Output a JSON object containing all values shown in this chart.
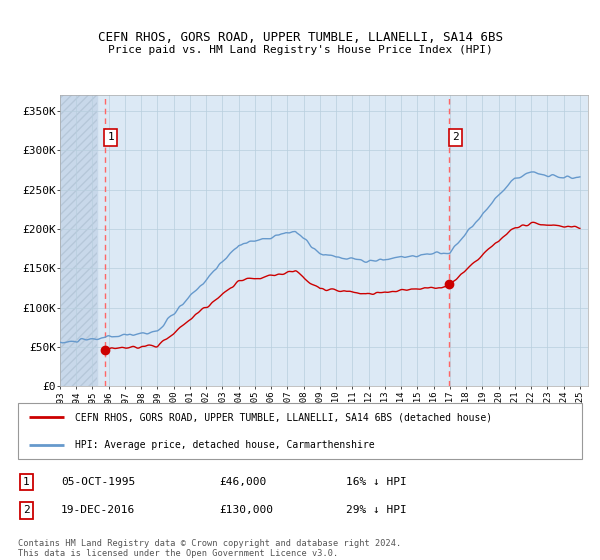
{
  "title": "CEFN RHOS, GORS ROAD, UPPER TUMBLE, LLANELLI, SA14 6BS",
  "subtitle": "Price paid vs. HM Land Registry's House Price Index (HPI)",
  "ylim": [
    0,
    370000
  ],
  "yticks": [
    0,
    50000,
    100000,
    150000,
    200000,
    250000,
    300000,
    350000
  ],
  "ytick_labels": [
    "£0",
    "£50K",
    "£100K",
    "£150K",
    "£200K",
    "£250K",
    "£300K",
    "£350K"
  ],
  "xlim_start": 1993,
  "xlim_end": 2025.5,
  "bg_color": "#dce9f5",
  "hatch_color": "#c8d8ea",
  "grid_color": "#b8cede",
  "sale1_price": 46000,
  "sale1_year": 1995.76,
  "sale1_label": "1",
  "sale2_price": 130000,
  "sale2_year": 2016.97,
  "sale2_label": "2",
  "hpi_line_color": "#6699cc",
  "price_line_color": "#cc0000",
  "dashed_line_color": "#ff6666",
  "legend_label1": "CEFN RHOS, GORS ROAD, UPPER TUMBLE, LLANELLI, SA14 6BS (detached house)",
  "legend_label2": "HPI: Average price, detached house, Carmarthenshire",
  "note1_date": "05-OCT-1995",
  "note1_price": "£46,000",
  "note1_hpi": "16% ↓ HPI",
  "note2_date": "19-DEC-2016",
  "note2_price": "£130,000",
  "note2_hpi": "29% ↓ HPI",
  "footer": "Contains HM Land Registry data © Crown copyright and database right 2024.\nThis data is licensed under the Open Government Licence v3.0."
}
